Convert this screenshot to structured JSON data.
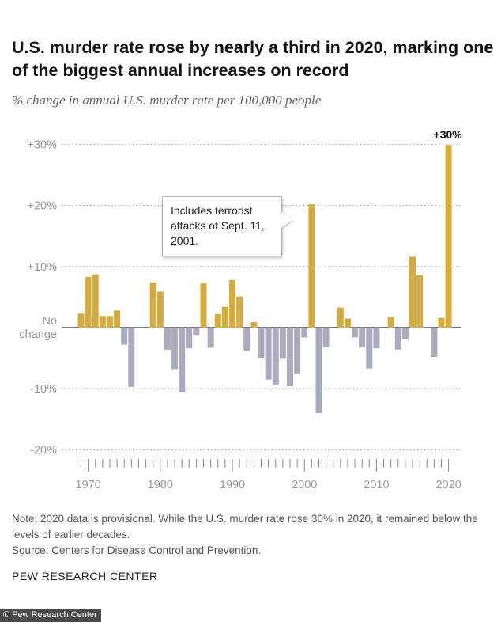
{
  "header": {
    "title": "U.S. murder rate rose by nearly a third in 2020, marking one of the biggest annual increases on record",
    "subtitle": "% change in annual U.S. murder rate per 100,000 people"
  },
  "annotation": {
    "text": "Includes terrorist attacks of Sept. 11, 2001.",
    "year": 2001
  },
  "footer": {
    "note": "Note: 2020 data is provisional. While the U.S. murder rate rose 30% in 2020, it remained below the levels of earlier decades.",
    "source": "Source: Centers for Disease Control and Prevention.",
    "brand": "PEW RESEARCH CENTER",
    "credit": "© Pew Research Center"
  },
  "colors": {
    "increase": "#d4ab3c",
    "decrease": "#ababbe",
    "grid": "#999999",
    "axis_text": "#999999"
  },
  "chart_data": {
    "type": "bar",
    "ylim": [
      -20,
      30
    ],
    "yticks": [
      -20,
      -10,
      0,
      10,
      20,
      30
    ],
    "ytick_labels": [
      "-20%",
      "-10%",
      "No change",
      "+10%",
      "+20%",
      "+30%"
    ],
    "xticks": [
      1970,
      1980,
      1990,
      2000,
      2010,
      2020
    ],
    "xtick_labels": [
      "1970",
      "1980",
      "1990",
      "2000",
      "2010",
      "2020"
    ],
    "xlim": [
      1969,
      2020
    ],
    "grid": true,
    "data_labels": [
      {
        "year": 2020,
        "text": "+30%"
      }
    ],
    "x": [
      1969,
      1970,
      1971,
      1972,
      1973,
      1974,
      1975,
      1976,
      1977,
      1978,
      1979,
      1980,
      1981,
      1982,
      1983,
      1984,
      1985,
      1986,
      1987,
      1988,
      1989,
      1990,
      1991,
      1992,
      1993,
      1994,
      1995,
      1996,
      1997,
      1998,
      1999,
      2000,
      2001,
      2002,
      2003,
      2004,
      2005,
      2006,
      2007,
      2008,
      2009,
      2010,
      2011,
      2012,
      2013,
      2014,
      2015,
      2016,
      2017,
      2018,
      2019,
      2020
    ],
    "values": [
      2.3,
      8.3,
      8.7,
      1.9,
      1.9,
      2.8,
      -2.8,
      -9.7,
      0,
      0,
      7.4,
      5.9,
      -3.6,
      -6.8,
      -10.5,
      -3.4,
      -1.2,
      7.3,
      -3.3,
      2.2,
      3.4,
      7.8,
      5.1,
      -3.8,
      0.9,
      -5.0,
      -8.5,
      -9.3,
      -5.1,
      -9.6,
      -7.5,
      -1.6,
      20.2,
      -14.0,
      -3.2,
      0,
      3.3,
      1.5,
      -1.6,
      -3.2,
      -6.7,
      -3.4,
      0,
      1.8,
      -3.6,
      -1.9,
      11.6,
      8.6,
      0,
      -4.8,
      1.6,
      29.9
    ]
  }
}
